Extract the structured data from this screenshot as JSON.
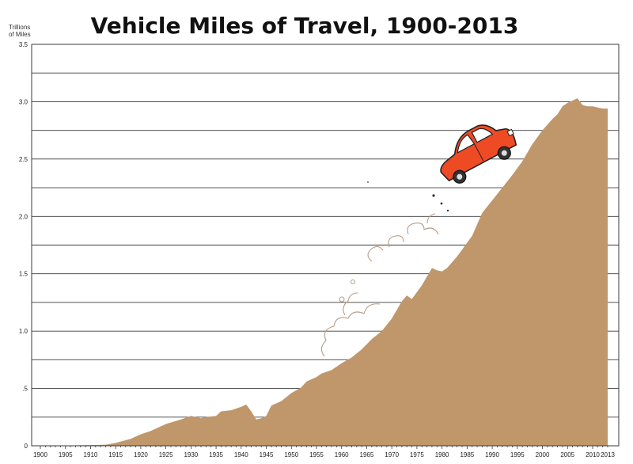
{
  "chart_data": {
    "type": "area",
    "title": "Vehicle Miles of Travel, 1900-2013",
    "unit_label_line1": "Trillions",
    "unit_label_line2": "of Miles",
    "xlabel": "",
    "ylabel": "",
    "ylim": [
      0,
      3.5
    ],
    "xlim": [
      1900,
      2013
    ],
    "y_ticks": [
      {
        "value": 0,
        "label": "0"
      },
      {
        "value": 0.5,
        "label": ".5"
      },
      {
        "value": 1.0,
        "label": "1.0"
      },
      {
        "value": 1.5,
        "label": "1.5"
      },
      {
        "value": 2.0,
        "label": "2.0"
      },
      {
        "value": 2.5,
        "label": "2.5"
      },
      {
        "value": 3.0,
        "label": "3.0"
      },
      {
        "value": 3.5,
        "label": "3.5"
      }
    ],
    "x_tick_labels": [
      "1900",
      "1905",
      "1910",
      "1915",
      "1920",
      "1925",
      "1930",
      "1935",
      "1940",
      "1945",
      "1950",
      "1955",
      "1960",
      "1965",
      "1970",
      "1975",
      "1980",
      "1985",
      "1990",
      "1995",
      "2000",
      "2005",
      "2010",
      "2013"
    ],
    "grid": true,
    "fill_color": "#c0976a",
    "x": [
      1900,
      1905,
      1910,
      1913,
      1915,
      1918,
      1920,
      1922,
      1925,
      1928,
      1930,
      1932,
      1933,
      1935,
      1936,
      1938,
      1940,
      1941,
      1942,
      1943,
      1944,
      1945,
      1946,
      1948,
      1950,
      1952,
      1953,
      1955,
      1956,
      1958,
      1960,
      1962,
      1964,
      1966,
      1968,
      1970,
      1972,
      1973,
      1974,
      1976,
      1978,
      1979,
      1980,
      1981,
      1983,
      1985,
      1986,
      1988,
      1990,
      1992,
      1994,
      1996,
      1998,
      2000,
      2002,
      2003,
      2004,
      2005,
      2006,
      2007,
      2008,
      2009,
      2010,
      2011,
      2012,
      2013
    ],
    "y": [
      0.0,
      0.003,
      0.006,
      0.01,
      0.025,
      0.06,
      0.1,
      0.13,
      0.19,
      0.23,
      0.26,
      0.24,
      0.25,
      0.26,
      0.3,
      0.31,
      0.34,
      0.36,
      0.3,
      0.23,
      0.24,
      0.26,
      0.35,
      0.39,
      0.46,
      0.51,
      0.56,
      0.6,
      0.63,
      0.66,
      0.72,
      0.77,
      0.84,
      0.93,
      1.0,
      1.11,
      1.26,
      1.31,
      1.28,
      1.4,
      1.55,
      1.53,
      1.52,
      1.55,
      1.65,
      1.77,
      1.83,
      2.03,
      2.14,
      2.25,
      2.36,
      2.48,
      2.63,
      2.75,
      2.85,
      2.89,
      2.96,
      2.99,
      3.01,
      3.03,
      2.97,
      2.96,
      2.96,
      2.95,
      2.94,
      2.94
    ]
  },
  "decoration": {
    "car_icon": "red-car-icon",
    "exhaust_icon": "exhaust-cloud-icon",
    "car_color": "#ee4b25"
  }
}
